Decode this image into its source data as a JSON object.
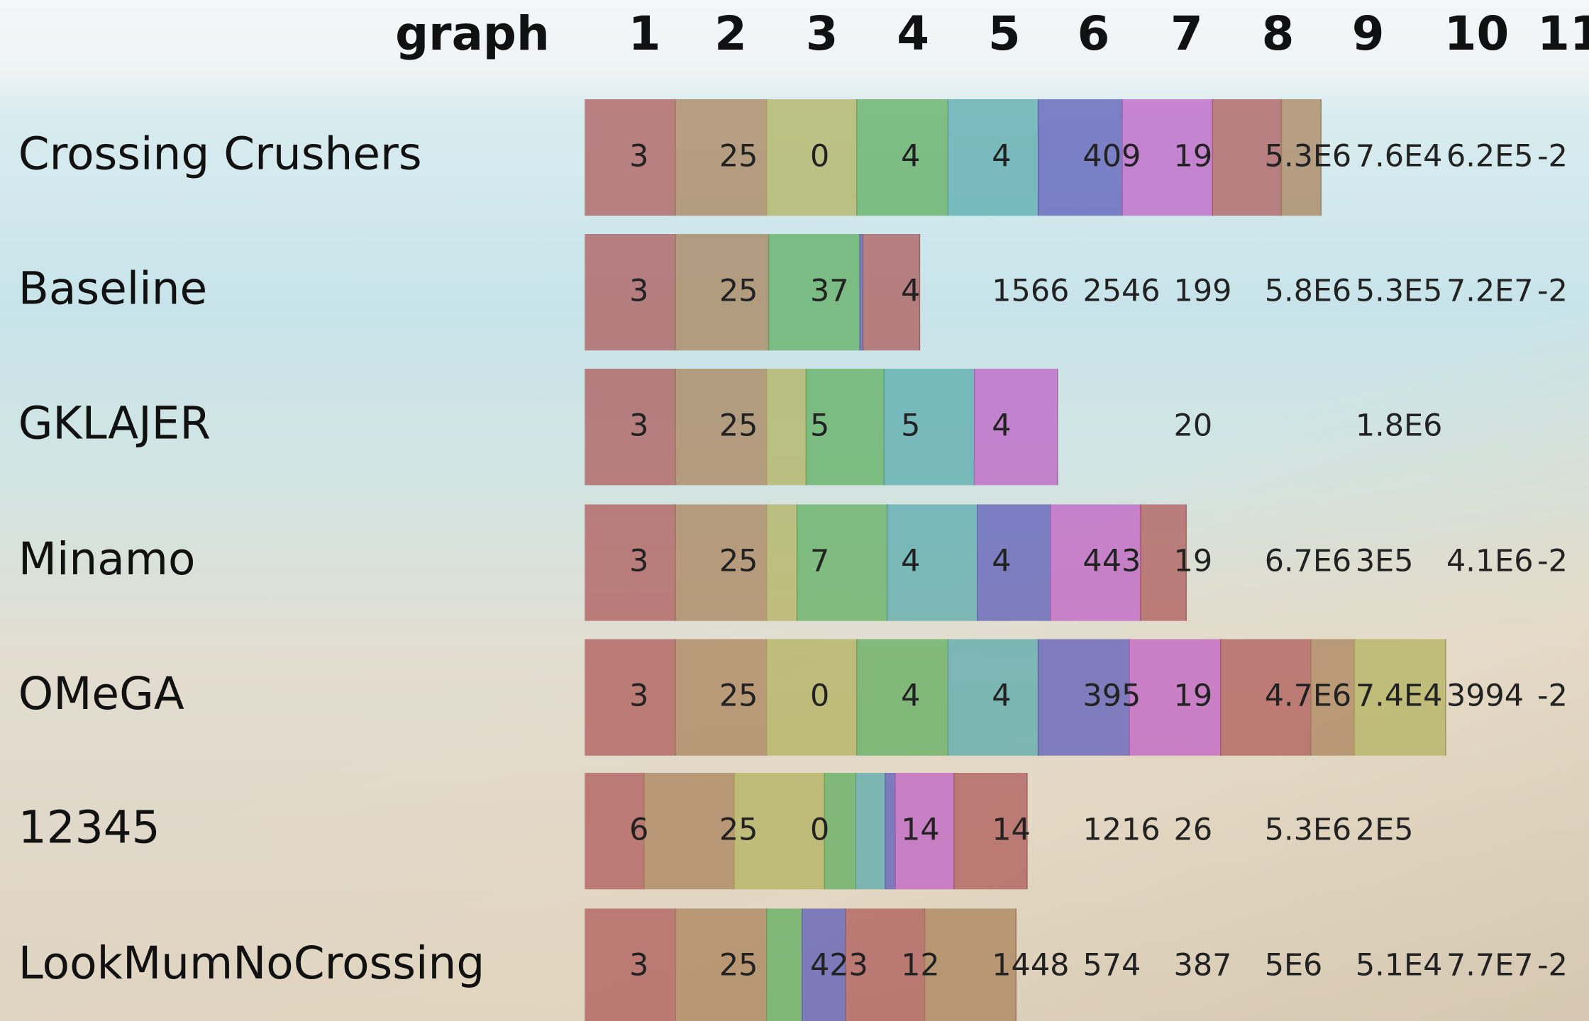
{
  "header": {
    "title": "graph",
    "columns": [
      "1",
      "2",
      "3",
      "4",
      "5",
      "6",
      "7",
      "8",
      "9",
      "10",
      "11"
    ]
  },
  "rows": [
    {
      "name": "Crossing Crushers",
      "cells": [
        "3",
        "25",
        "0",
        "4",
        "4",
        "409",
        "19",
        "5.3E6",
        "7.6E4",
        "6.2E5",
        "-2"
      ]
    },
    {
      "name": "Baseline",
      "cells": [
        "3",
        "25",
        "37",
        "4",
        "1566",
        "2546",
        "199",
        "5.8E6",
        "5.3E5",
        "7.2E7",
        "-2"
      ]
    },
    {
      "name": "GKLAJER",
      "cells": [
        "3",
        "25",
        "5",
        "5",
        "4",
        null,
        "20",
        null,
        "1.8E6",
        null,
        null
      ]
    },
    {
      "name": "Minamo",
      "cells": [
        "3",
        "25",
        "7",
        "4",
        "4",
        "443",
        "19",
        "6.7E6",
        "3E5",
        "4.1E6",
        "-2"
      ]
    },
    {
      "name": "OMeGA",
      "cells": [
        "3",
        "25",
        "0",
        "4",
        "4",
        "395",
        "19",
        "4.7E6",
        "7.4E4",
        "3994",
        "-2"
      ]
    },
    {
      "name": "12345",
      "cells": [
        "6",
        "25",
        "0",
        "14",
        "14",
        "1216",
        "26",
        "5.3E6",
        "2E5",
        null,
        null
      ]
    },
    {
      "name": "LookMumNoCrossing",
      "cells": [
        "3",
        "25",
        "423",
        "12",
        "1448",
        "574",
        "387",
        "5E6",
        "5.1E4",
        "7.7E7",
        "-2"
      ]
    }
  ]
}
